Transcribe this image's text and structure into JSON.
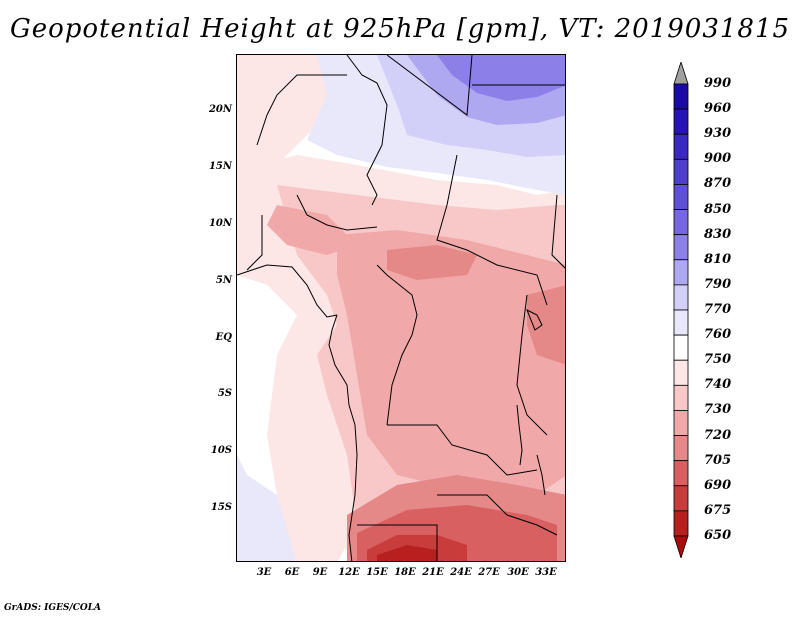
{
  "title": "Geopotential Height at 925hPa [gpm], VT: 2019031815",
  "latitude_labels": [
    "20N",
    "15N",
    "10N",
    "5N",
    "EQ",
    "5S",
    "10S",
    "15S"
  ],
  "longitude_labels": [
    "3E",
    "6E",
    "9E",
    "12E",
    "15E",
    "18E",
    "21E",
    "24E",
    "27E",
    "30E",
    "33E"
  ],
  "colorbar": {
    "levels": [
      "990",
      "960",
      "930",
      "900",
      "870",
      "850",
      "830",
      "810",
      "790",
      "770",
      "760",
      "750",
      "740",
      "730",
      "720",
      "705",
      "690",
      "675",
      "650"
    ],
    "colors": [
      "#1a0aa6",
      "#2814b4",
      "#3a28c0",
      "#4d3fcc",
      "#6050d8",
      "#7666e0",
      "#8c80e8",
      "#aea8f0",
      "#d2d0f8",
      "#e8e8fa",
      "#ffffff",
      "#fde6e6",
      "#f8c8c8",
      "#f0a8a8",
      "#e58888",
      "#d86060",
      "#c83c3c",
      "#b82020",
      "#a80c0c"
    ],
    "top_arrow_color": "#a0a0a0",
    "bottom_arrow_color": "#a80c0c"
  },
  "credit": "GrADS: IGES/COLA"
}
